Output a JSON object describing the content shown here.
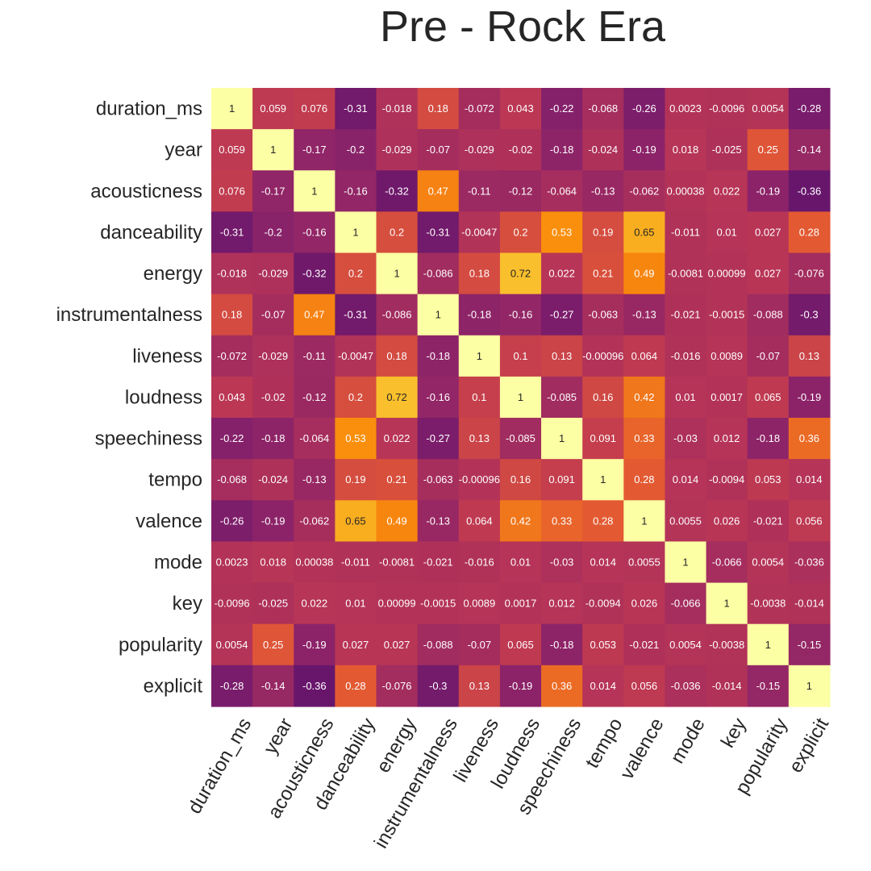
{
  "chart_data": {
    "type": "heatmap",
    "title": "Pre - Rock Era",
    "xlabel": "",
    "ylabel": "",
    "colormap": "inferno",
    "color_range": [
      -0.4,
      1.0
    ],
    "colorbar": false,
    "grid": false,
    "labels": [
      "duration_ms",
      "year",
      "acousticness",
      "danceability",
      "energy",
      "instrumentalness",
      "liveness",
      "loudness",
      "speechiness",
      "tempo",
      "valence",
      "mode",
      "key",
      "popularity",
      "explicit"
    ],
    "values": [
      [
        1,
        0.059,
        0.076,
        -0.31,
        -0.018,
        0.18,
        -0.072,
        0.043,
        -0.22,
        -0.068,
        -0.26,
        0.0023,
        -0.0096,
        0.0054,
        -0.28
      ],
      [
        0.059,
        1,
        -0.17,
        -0.2,
        -0.029,
        -0.07,
        -0.029,
        -0.02,
        -0.18,
        -0.024,
        -0.19,
        0.018,
        -0.025,
        0.25,
        -0.14
      ],
      [
        0.076,
        -0.17,
        1,
        -0.16,
        -0.32,
        0.47,
        -0.11,
        -0.12,
        -0.064,
        -0.13,
        -0.062,
        0.00038,
        0.022,
        -0.19,
        -0.36
      ],
      [
        -0.31,
        -0.2,
        -0.16,
        1,
        0.2,
        -0.31,
        -0.0047,
        0.2,
        0.53,
        0.19,
        0.65,
        -0.011,
        0.01,
        0.027,
        0.28
      ],
      [
        -0.018,
        -0.029,
        -0.32,
        0.2,
        1,
        -0.086,
        0.18,
        0.72,
        0.022,
        0.21,
        0.49,
        -0.0081,
        0.00099,
        0.027,
        -0.076
      ],
      [
        0.18,
        -0.07,
        0.47,
        -0.31,
        -0.086,
        1,
        -0.18,
        -0.16,
        -0.27,
        -0.063,
        -0.13,
        -0.021,
        -0.0015,
        -0.088,
        -0.3
      ],
      [
        -0.072,
        -0.029,
        -0.11,
        -0.0047,
        0.18,
        -0.18,
        1,
        0.1,
        0.13,
        -0.00096,
        0.064,
        -0.016,
        0.0089,
        -0.07,
        0.13
      ],
      [
        0.043,
        -0.02,
        -0.12,
        0.2,
        0.72,
        -0.16,
        0.1,
        1,
        -0.085,
        0.16,
        0.42,
        0.01,
        0.0017,
        0.065,
        -0.19
      ],
      [
        -0.22,
        -0.18,
        -0.064,
        0.53,
        0.022,
        -0.27,
        0.13,
        -0.085,
        1,
        0.091,
        0.33,
        -0.03,
        0.012,
        -0.18,
        0.36
      ],
      [
        -0.068,
        -0.024,
        -0.13,
        0.19,
        0.21,
        -0.063,
        -0.00096,
        0.16,
        0.091,
        1,
        0.28,
        0.014,
        -0.0094,
        0.053,
        0.014
      ],
      [
        -0.26,
        -0.19,
        -0.062,
        0.65,
        0.49,
        -0.13,
        0.064,
        0.42,
        0.33,
        0.28,
        1,
        0.0055,
        0.026,
        -0.021,
        0.056
      ],
      [
        0.0023,
        0.018,
        0.00038,
        -0.011,
        -0.0081,
        -0.021,
        -0.016,
        0.01,
        -0.03,
        0.014,
        0.0055,
        1,
        -0.066,
        0.0054,
        -0.036
      ],
      [
        -0.0096,
        -0.025,
        0.022,
        0.01,
        0.00099,
        -0.0015,
        0.0089,
        0.0017,
        0.012,
        -0.0094,
        0.026,
        -0.066,
        1,
        -0.0038,
        -0.014
      ],
      [
        0.0054,
        0.25,
        -0.19,
        0.027,
        0.027,
        -0.088,
        -0.07,
        0.065,
        -0.18,
        0.053,
        -0.021,
        0.0054,
        -0.0038,
        1,
        -0.15
      ],
      [
        -0.28,
        -0.14,
        -0.36,
        0.28,
        -0.076,
        -0.3,
        0.13,
        -0.19,
        0.36,
        0.014,
        0.056,
        -0.036,
        -0.014,
        -0.15,
        1
      ]
    ]
  }
}
